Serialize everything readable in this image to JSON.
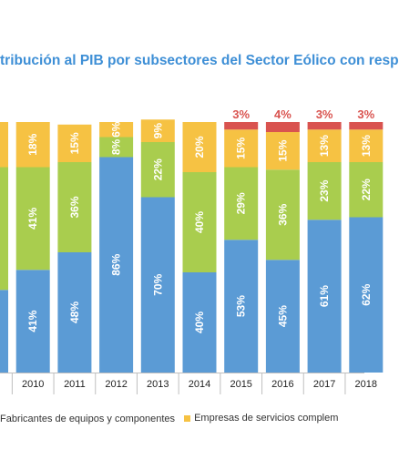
{
  "chart_data": {
    "type": "bar",
    "stacked": true,
    "title": "tribución al PIB por subsectores del Sector Eólico con resp",
    "categories": [
      "9",
      "2010",
      "2011",
      "2012",
      "2013",
      "2014",
      "2015",
      "2016",
      "2017",
      "2018"
    ],
    "series": [
      {
        "name": "Fabricantes de equipos  y componentes",
        "color": "#5b9bd5",
        "values": [
          null,
          41,
          48,
          86,
          70,
          40,
          53,
          45,
          61,
          62
        ],
        "labels": [
          "",
          "41%",
          "48%",
          "86%",
          "70%",
          "40%",
          "53%",
          "45%",
          "61%",
          "62%"
        ]
      },
      {
        "name": "",
        "color": "#a9cd4e",
        "values": [
          null,
          41,
          36,
          8,
          22,
          40,
          29,
          36,
          23,
          22
        ],
        "labels": [
          "",
          "41%",
          "36%",
          "8%",
          "22%",
          "40%",
          "29%",
          "36%",
          "23%",
          "22%"
        ]
      },
      {
        "name": "Empresas de servicios complem",
        "color": "#f6c243",
        "values": [
          null,
          18,
          15,
          6,
          9,
          20,
          15,
          15,
          13,
          13
        ],
        "labels": [
          "",
          "18%",
          "15%",
          "6%",
          "9%",
          "20%",
          "15%",
          "15%",
          "13%",
          "13%"
        ]
      },
      {
        "name": "",
        "color": "#d9534f",
        "values": [
          null,
          0,
          0,
          0,
          0,
          0,
          3,
          4,
          3,
          3
        ],
        "labels": [
          "",
          "",
          "",
          "",
          "",
          "",
          "3%",
          "4%",
          "3%",
          "3%"
        ]
      }
    ],
    "ylim": [
      0,
      100
    ],
    "legend": "bottom",
    "grid": false
  }
}
